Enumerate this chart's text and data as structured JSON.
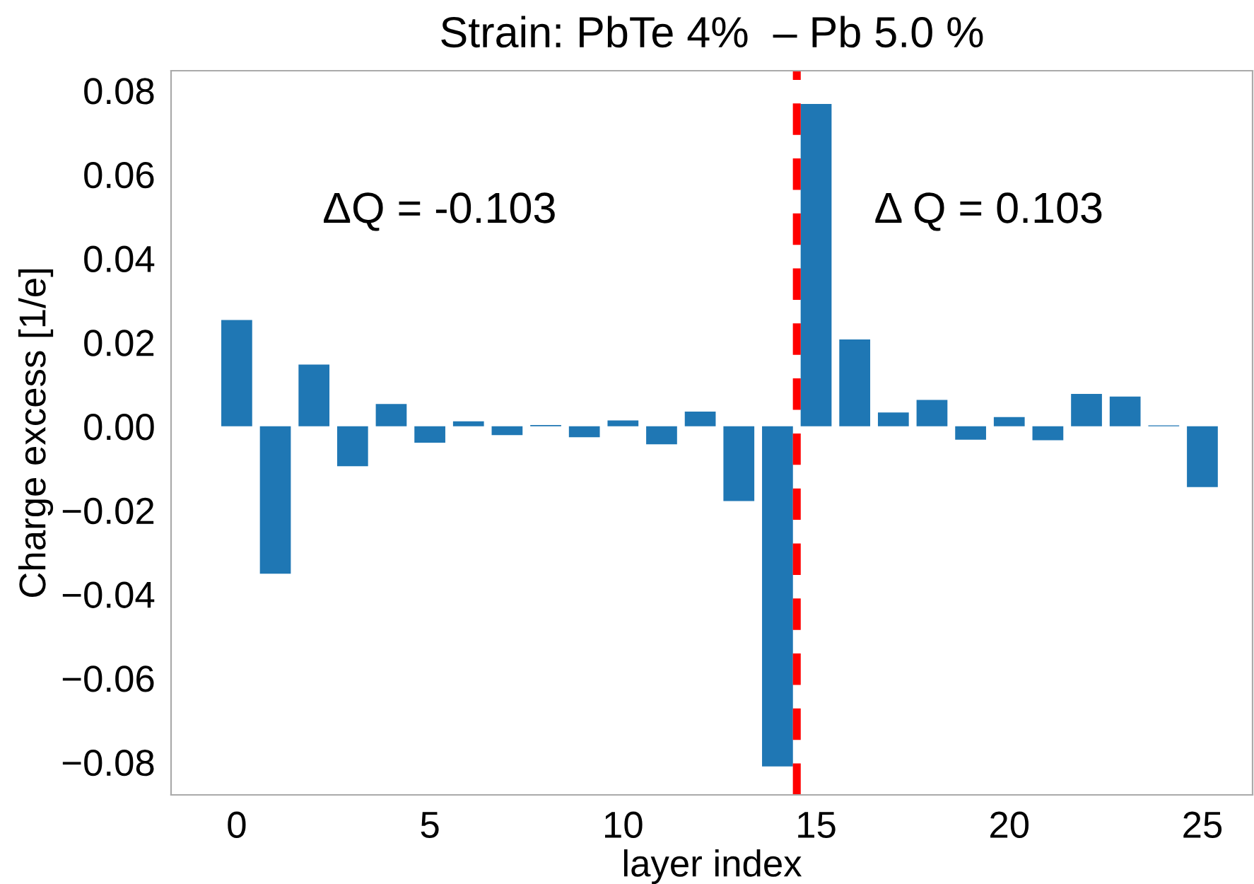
{
  "chart_data": {
    "type": "bar",
    "title": "Strain: PbTe 4%  – Pb 5.0 %",
    "xlabel": "layer index",
    "ylabel": "Charge excess [1/e]",
    "x": [
      0,
      1,
      2,
      3,
      4,
      5,
      6,
      7,
      8,
      9,
      10,
      11,
      12,
      13,
      14,
      15,
      16,
      17,
      18,
      19,
      20,
      21,
      22,
      23,
      24,
      25
    ],
    "values": [
      0.0253,
      -0.0351,
      0.0147,
      -0.0095,
      0.0053,
      -0.0039,
      0.0012,
      -0.0021,
      0.0003,
      -0.0026,
      0.0014,
      -0.0043,
      0.0035,
      -0.0178,
      -0.081,
      0.0768,
      0.0207,
      0.0033,
      0.0063,
      -0.0032,
      0.0022,
      -0.0033,
      0.0077,
      0.0071,
      0.0002,
      -0.0145
    ],
    "color": "#1f77b4",
    "xlim": [
      -1.7,
      26.3
    ],
    "xticks": [
      0,
      5,
      10,
      15,
      20,
      25
    ],
    "ylim": [
      -0.0878,
      0.0847
    ],
    "yticks": [
      {
        "value": -0.08,
        "label": "−0.08"
      },
      {
        "value": -0.06,
        "label": "−0.06"
      },
      {
        "value": -0.04,
        "label": "−0.04"
      },
      {
        "value": -0.02,
        "label": "−0.02"
      },
      {
        "value": 0.0,
        "label": "0.00"
      },
      {
        "value": 0.02,
        "label": "0.02"
      },
      {
        "value": 0.04,
        "label": "0.04"
      },
      {
        "value": 0.06,
        "label": "0.06"
      },
      {
        "value": 0.08,
        "label": "0.08"
      }
    ],
    "ref_lines": [
      {
        "axis": "x",
        "value": 14.5,
        "color": "#ff0000",
        "line_style": "dashed"
      }
    ],
    "annotations": [
      "ΔQ = -0.103",
      "Δ Q = 0.103"
    ],
    "grid": false
  }
}
